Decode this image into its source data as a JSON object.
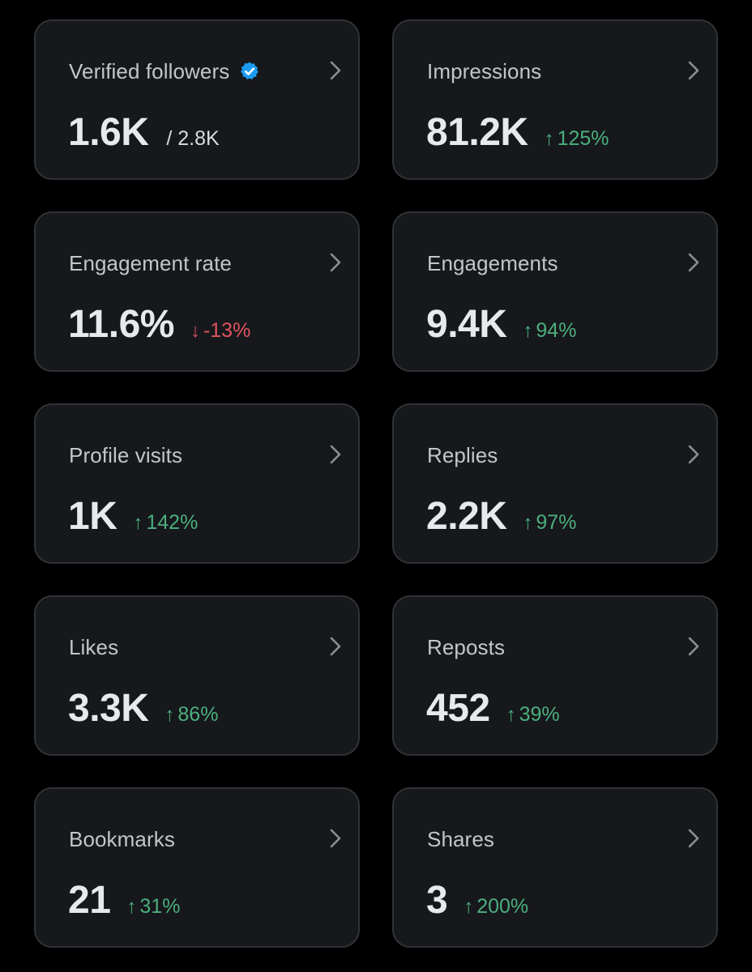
{
  "colors": {
    "background": "#000000",
    "card": "#16181c",
    "card_border": "#2f3336",
    "positive": "#4caf7d",
    "negative": "#e0535f",
    "verified": "#1d9bf0"
  },
  "cards": [
    {
      "label": "Verified followers",
      "value": "1.6K",
      "total": "/ 2.8K",
      "verified_icon": "verified-badge-icon"
    },
    {
      "label": "Impressions",
      "value": "81.2K",
      "change_arrow": "↑",
      "change": "125%",
      "direction": "up"
    },
    {
      "label": "Engagement rate",
      "value": "11.6%",
      "change_arrow": "↓",
      "change": "-13%",
      "direction": "down"
    },
    {
      "label": "Engagements",
      "value": "9.4K",
      "change_arrow": "↑",
      "change": "94%",
      "direction": "up"
    },
    {
      "label": "Profile visits",
      "value": "1K",
      "change_arrow": "↑",
      "change": "142%",
      "direction": "up"
    },
    {
      "label": "Replies",
      "value": "2.2K",
      "change_arrow": "↑",
      "change": "97%",
      "direction": "up"
    },
    {
      "label": "Likes",
      "value": "3.3K",
      "change_arrow": "↑",
      "change": "86%",
      "direction": "up"
    },
    {
      "label": "Reposts",
      "value": "452",
      "change_arrow": "↑",
      "change": "39%",
      "direction": "up"
    },
    {
      "label": "Bookmarks",
      "value": "21",
      "change_arrow": "↑",
      "change": "31%",
      "direction": "up"
    },
    {
      "label": "Shares",
      "value": "3",
      "change_arrow": "↑",
      "change": "200%",
      "direction": "up"
    }
  ]
}
